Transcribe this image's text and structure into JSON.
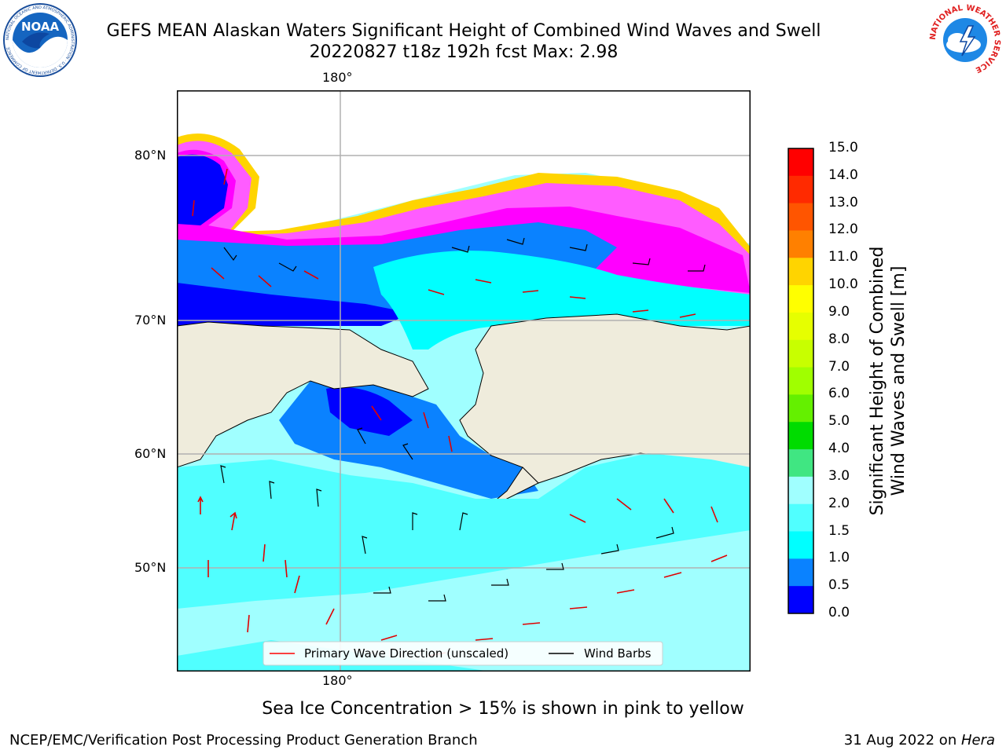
{
  "header": {
    "title_line1": "GEFS MEAN Alaskan Waters Significant Height of Combined Wind Waves and Swell",
    "title_line2": "20220827 t18z 192h fcst   Max: 2.98"
  },
  "logos": {
    "noaa_text": "NOAA",
    "noaa_ring_text": "NATIONAL OCEANIC AND ATMOSPHERIC ADMINISTRATION · U.S. DEPARTMENT OF COMMERCE",
    "nws_ring_text": "NATIONAL WEATHER SERVICE"
  },
  "map": {
    "lon_label_top": "180°",
    "lon_label_bottom": "180°",
    "lat_labels": [
      "80°N",
      "70°N",
      "60°N",
      "50°N"
    ],
    "legend": {
      "wave_label": "Primary Wave Direction (unscaled)",
      "wind_label": "Wind Barbs",
      "wave_color": "#ff0000",
      "wind_color": "#000000"
    }
  },
  "colorbar": {
    "title_line1": "Significant Height of Combined",
    "title_line2": "Wind Waves and Swell [m]",
    "ticks": [
      "15.0",
      "14.0",
      "13.0",
      "12.0",
      "11.0",
      "10.0",
      "9.0",
      "8.0",
      "7.0",
      "6.0",
      "5.0",
      "4.0",
      "3.0",
      "2.0",
      "1.5",
      "1.0",
      "0.5",
      "0.0"
    ],
    "colors_top_to_bottom": [
      "#ff0000",
      "#ff2a00",
      "#ff5500",
      "#ff8000",
      "#ffaa00",
      "#ffd400",
      "#ffff00",
      "#e6ff00",
      "#c8ff00",
      "#a0ff00",
      "#64f000",
      "#00dc00",
      "#40e682",
      "#50f5a0",
      "#a0ffff",
      "#50ffff",
      "#00ffff",
      "#0a82ff",
      "#0000ff"
    ]
  },
  "caption": "Sea Ice Concentration > 15% is shown in pink to yellow",
  "footer": {
    "left": "NCEP/EMC/Verification Post Processing Product Generation Branch",
    "right_date": "31 Aug 2022 on ",
    "right_host": "Hera"
  }
}
